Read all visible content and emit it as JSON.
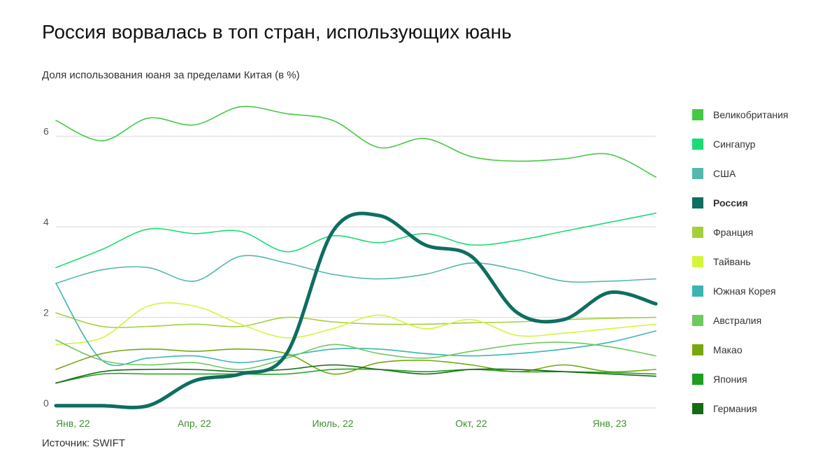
{
  "title": "Россия ворвалась в топ стран, использующих юань",
  "subtitle": "Доля использования юаня за пределами Китая (в %)",
  "source": "Источник: SWIFT",
  "chart_data": {
    "type": "line",
    "ylim": [
      0,
      7
    ],
    "yticks": [
      0,
      2,
      4,
      6
    ],
    "xlim": [
      0,
      13
    ],
    "xticks": [
      {
        "x": 0,
        "label": "Янв, 22"
      },
      {
        "x": 3,
        "label": "Апр, 22"
      },
      {
        "x": 6,
        "label": "Июль, 22"
      },
      {
        "x": 9,
        "label": "Окт, 22"
      },
      {
        "x": 12,
        "label": "Янв, 23"
      }
    ],
    "grid": true,
    "x": [
      0,
      1,
      2,
      3,
      4,
      5,
      6,
      7,
      8,
      9,
      10,
      11,
      12,
      13
    ],
    "series": [
      {
        "name": "Великобритания",
        "color": "#45c945",
        "width": 1.6,
        "values": [
          6.35,
          5.9,
          6.4,
          6.25,
          6.65,
          6.5,
          6.35,
          5.75,
          5.95,
          5.55,
          5.45,
          5.5,
          5.6,
          5.1
        ]
      },
      {
        "name": "Сингапур",
        "color": "#1bdc74",
        "width": 1.6,
        "values": [
          3.1,
          3.5,
          3.95,
          3.85,
          3.9,
          3.45,
          3.8,
          3.65,
          3.85,
          3.6,
          3.7,
          3.9,
          4.1,
          4.3
        ]
      },
      {
        "name": "США",
        "color": "#55b8ac",
        "width": 1.6,
        "values": [
          2.75,
          3.05,
          3.1,
          2.8,
          3.35,
          3.2,
          2.95,
          2.85,
          2.95,
          3.2,
          3.05,
          2.8,
          2.8,
          2.85
        ]
      },
      {
        "name": "Россия",
        "color": "#0e6e60",
        "width": 5,
        "bold": true,
        "values": [
          0.05,
          0.05,
          0.05,
          0.6,
          0.75,
          1.2,
          3.9,
          4.25,
          3.6,
          3.35,
          2.1,
          1.95,
          2.55,
          2.3
        ]
      },
      {
        "name": "Франция",
        "color": "#a3d03a",
        "width": 1.6,
        "values": [
          2.1,
          1.8,
          1.8,
          1.85,
          1.8,
          2.0,
          1.9,
          1.85,
          1.85,
          1.88,
          1.9,
          1.95,
          1.98,
          2.0
        ]
      },
      {
        "name": "Тайвань",
        "color": "#d3f53a",
        "width": 1.6,
        "values": [
          1.4,
          1.55,
          2.25,
          2.25,
          1.85,
          1.55,
          1.75,
          2.05,
          1.75,
          1.95,
          1.6,
          1.65,
          1.75,
          1.85
        ]
      },
      {
        "name": "Южная Корея",
        "color": "#3bb5b0",
        "width": 1.6,
        "values": [
          2.75,
          1.05,
          1.1,
          1.15,
          1.0,
          1.15,
          1.3,
          1.3,
          1.2,
          1.15,
          1.2,
          1.3,
          1.45,
          1.7
        ]
      },
      {
        "name": "Австралия",
        "color": "#6cca5e",
        "width": 1.6,
        "values": [
          1.5,
          1.05,
          0.95,
          1.0,
          0.85,
          1.1,
          1.4,
          1.2,
          1.1,
          1.25,
          1.4,
          1.45,
          1.35,
          1.15
        ]
      },
      {
        "name": "Макао",
        "color": "#76a80f",
        "width": 1.6,
        "values": [
          0.85,
          1.2,
          1.3,
          1.25,
          1.3,
          1.2,
          0.75,
          1.0,
          1.05,
          0.95,
          0.8,
          0.95,
          0.8,
          0.85
        ]
      },
      {
        "name": "Япония",
        "color": "#1e9e1e",
        "width": 1.6,
        "values": [
          0.55,
          0.75,
          0.75,
          0.75,
          0.75,
          0.75,
          0.85,
          0.85,
          0.8,
          0.85,
          0.8,
          0.8,
          0.78,
          0.75
        ]
      },
      {
        "name": "Германия",
        "color": "#146b14",
        "width": 1.6,
        "values": [
          0.55,
          0.8,
          0.85,
          0.85,
          0.8,
          0.85,
          0.95,
          0.85,
          0.75,
          0.85,
          0.85,
          0.8,
          0.75,
          0.7
        ]
      }
    ]
  }
}
